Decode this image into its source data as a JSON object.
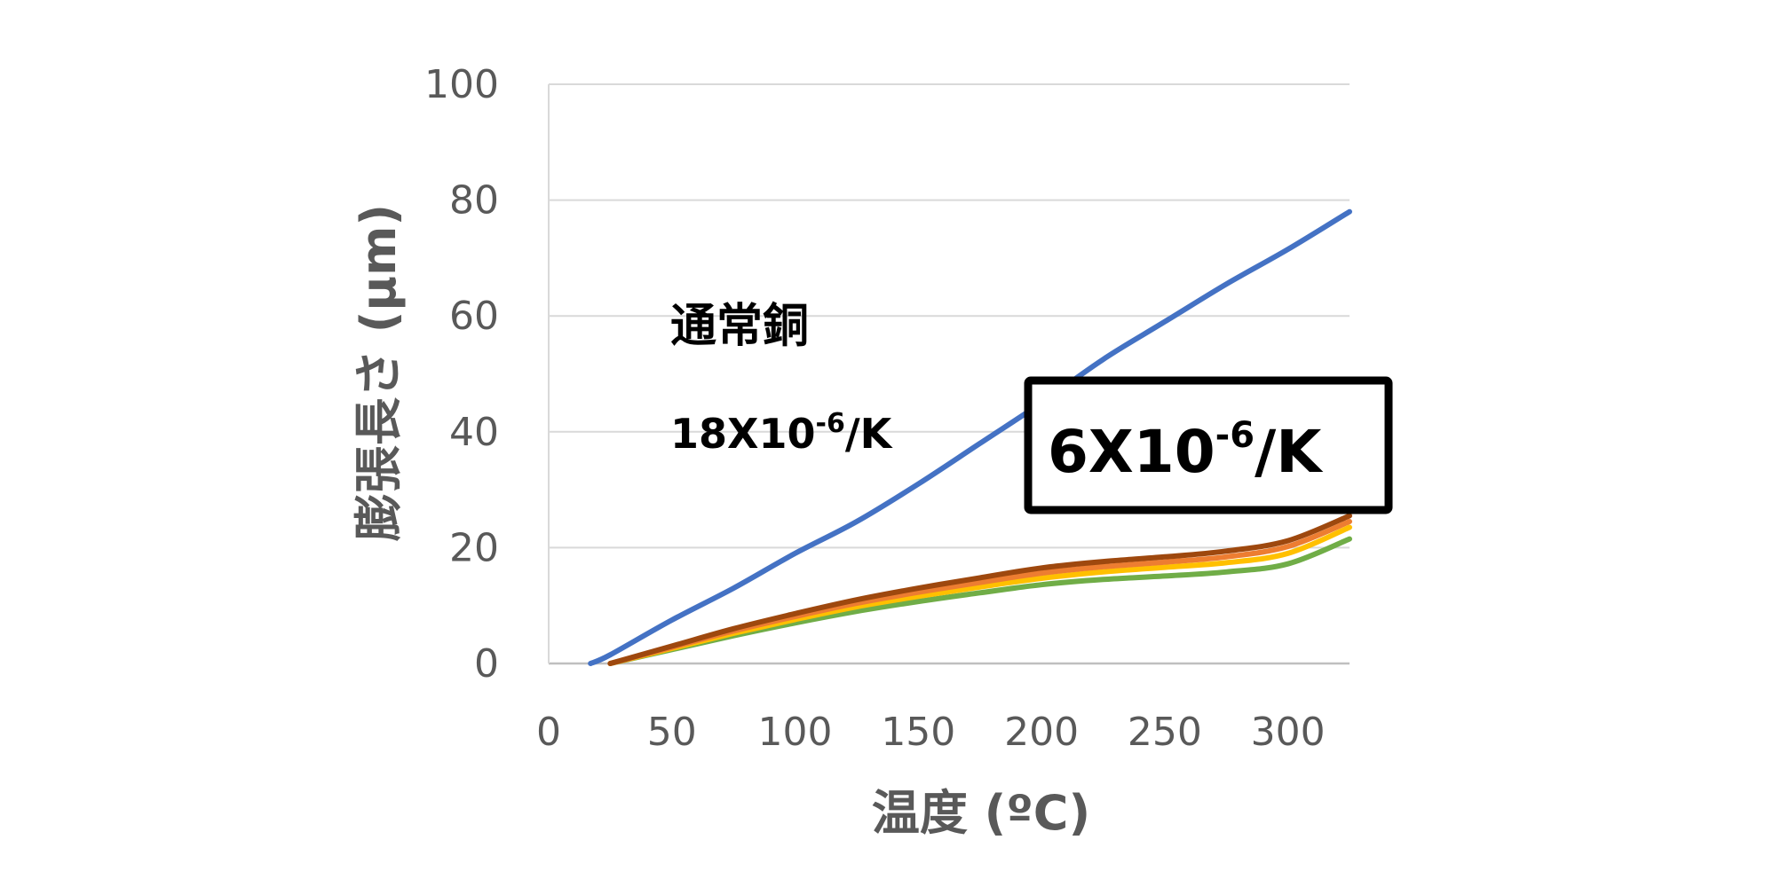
{
  "chart_data": {
    "type": "line",
    "title": "",
    "xlabel": "温度 (ºC)",
    "ylabel": "膨張長さ (µm)",
    "xlim": [
      0,
      325
    ],
    "ylim": [
      0,
      100
    ],
    "x_ticks": [
      "0",
      "50",
      "100",
      "150",
      "200",
      "250",
      "300"
    ],
    "y_ticks": [
      "0",
      "20",
      "40",
      "60",
      "80",
      "100"
    ],
    "grid": "horizontal",
    "legend": "none",
    "series": [
      {
        "color": "#4472C4",
        "x": [
          17,
          25,
          50,
          75,
          100,
          125,
          150,
          175,
          200,
          225,
          250,
          275,
          300,
          325
        ],
        "y": [
          0,
          1.5,
          7.5,
          13,
          19,
          24.5,
          31,
          38,
          45,
          52.5,
          59,
          65.5,
          71.5,
          78
        ]
      },
      {
        "color": "#9E480E",
        "x": [
          25,
          50,
          75,
          100,
          125,
          150,
          175,
          200,
          225,
          250,
          275,
          300,
          325
        ],
        "y": [
          0,
          3,
          6,
          8.6,
          11,
          13,
          14.8,
          16.5,
          17.6,
          18.4,
          19.4,
          21.2,
          25.5
        ]
      },
      {
        "color": "#ED7D31",
        "x": [
          25,
          50,
          75,
          100,
          125,
          150,
          175,
          200,
          225,
          250,
          275,
          300,
          325
        ],
        "y": [
          0,
          2.8,
          5.6,
          8.1,
          10.4,
          12.3,
          14,
          15.6,
          16.7,
          17.5,
          18.4,
          20.2,
          24.5
        ]
      },
      {
        "color": "#FFC000",
        "x": [
          25,
          50,
          75,
          100,
          125,
          150,
          175,
          200,
          225,
          250,
          275,
          300,
          325
        ],
        "y": [
          0,
          2.6,
          5.2,
          7.6,
          9.8,
          11.6,
          13.2,
          14.7,
          15.8,
          16.6,
          17.4,
          19,
          23.5
        ]
      },
      {
        "color": "#70AD47",
        "x": [
          25,
          50,
          75,
          100,
          125,
          150,
          175,
          200,
          225,
          250,
          275,
          300,
          325
        ],
        "y": [
          0,
          2.4,
          4.8,
          7,
          9,
          10.7,
          12.2,
          13.6,
          14.5,
          15.1,
          15.8,
          17.2,
          21.5
        ]
      }
    ],
    "annotations": [
      {
        "text": "通常銅",
        "boxed": false
      },
      {
        "text": "18X10",
        "sup": "-6",
        "suffix": "/K",
        "boxed": false
      },
      {
        "text": "6X10",
        "sup": "-6",
        "suffix": "/K",
        "boxed": true
      }
    ]
  }
}
